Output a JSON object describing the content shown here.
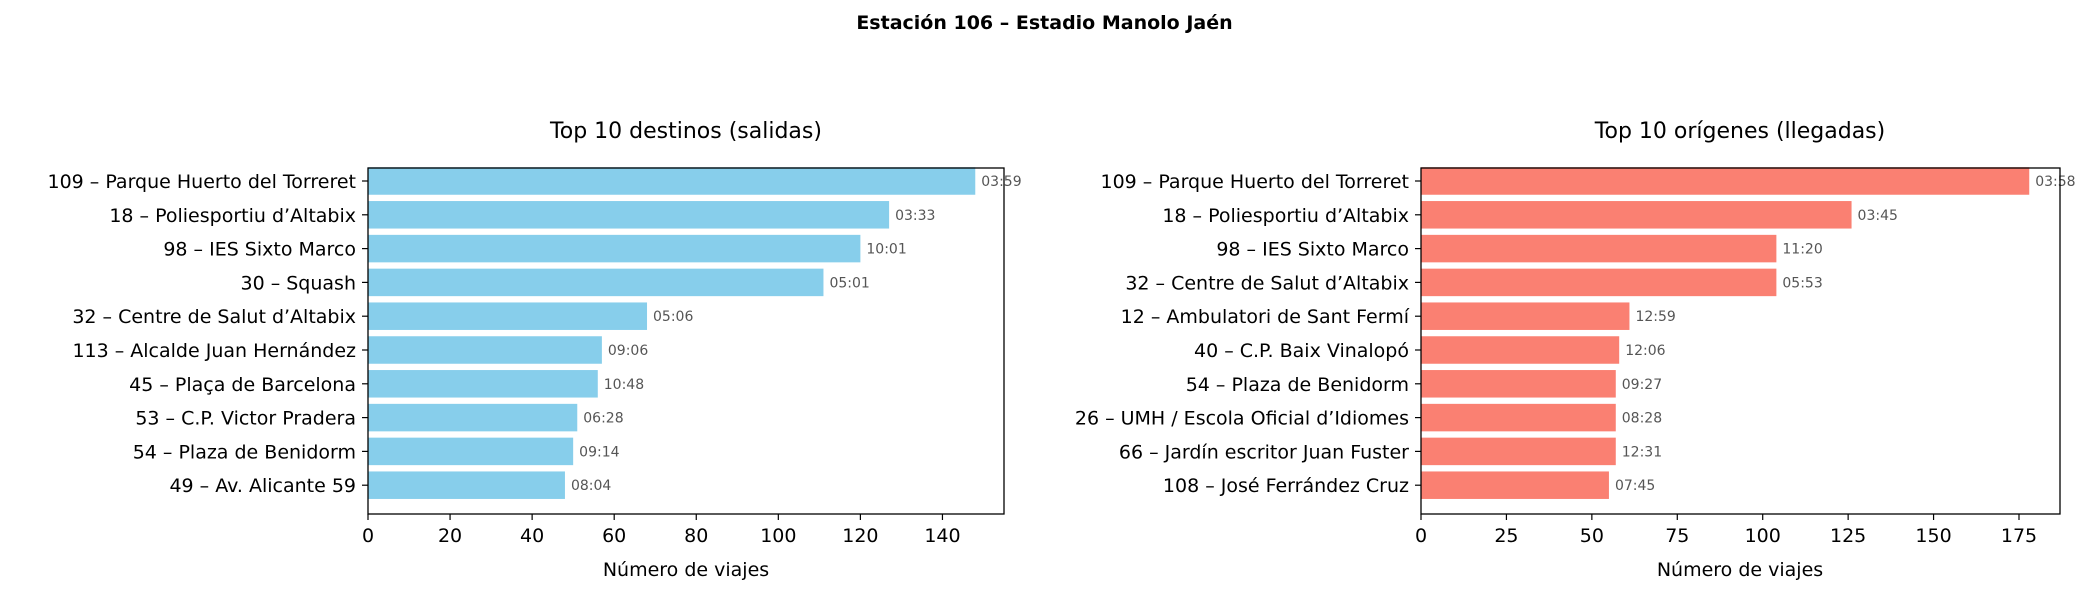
{
  "figure": {
    "suptitle": "Estación 106 – Estadio Manolo Jaén"
  },
  "chart_data": [
    {
      "type": "bar",
      "orientation": "horizontal",
      "title": "Top 10 destinos (salidas)",
      "xlabel": "Número de viajes",
      "ylabel": "",
      "xlim": [
        0,
        155
      ],
      "xticks": [
        0,
        20,
        40,
        60,
        80,
        100,
        120,
        140
      ],
      "color": "#87CEEB",
      "categories": [
        "109 – Parque Huerto del Torreret",
        "18 – Poliesportiu d’Altabix",
        "98 – IES Sixto Marco",
        "30 – Squash",
        "32 – Centre de Salut d’Altabix",
        "113 – Alcalde Juan Hernández",
        "45 – Plaça de Barcelona",
        "53 – C.P. Victor Pradera",
        "54 – Plaza de Benidorm",
        "49 – Av. Alicante 59"
      ],
      "values": [
        148,
        127,
        120,
        111,
        68,
        57,
        56,
        51,
        50,
        48
      ],
      "data_labels": [
        "03:59",
        "03:33",
        "10:01",
        "05:01",
        "05:06",
        "09:06",
        "10:48",
        "06:28",
        "09:14",
        "08:04"
      ],
      "grid": false
    },
    {
      "type": "bar",
      "orientation": "horizontal",
      "title": "Top 10 orígenes (llegadas)",
      "xlabel": "Número de viajes",
      "ylabel": "",
      "xlim": [
        0,
        187
      ],
      "xticks": [
        0,
        25,
        50,
        75,
        100,
        125,
        150,
        175
      ],
      "color": "#FA8072",
      "categories": [
        "109 – Parque Huerto del Torreret",
        "18 – Poliesportiu d’Altabix",
        "98 – IES Sixto Marco",
        "32 – Centre de Salut d’Altabix",
        "12 – Ambulatori de Sant Fermí",
        "40 – C.P. Baix Vinalopó",
        "54 – Plaza de Benidorm",
        "26 – UMH / Escola Oficial d’Idiomes",
        "66 – Jardín escritor Juan Fuster",
        "108 – José Ferrández Cruz"
      ],
      "values": [
        178,
        126,
        104,
        104,
        61,
        58,
        57,
        57,
        57,
        55
      ],
      "data_labels": [
        "03:58",
        "03:45",
        "11:20",
        "05:53",
        "12:59",
        "12:06",
        "09:27",
        "08:28",
        "12:31",
        "07:45"
      ],
      "grid": false
    }
  ]
}
